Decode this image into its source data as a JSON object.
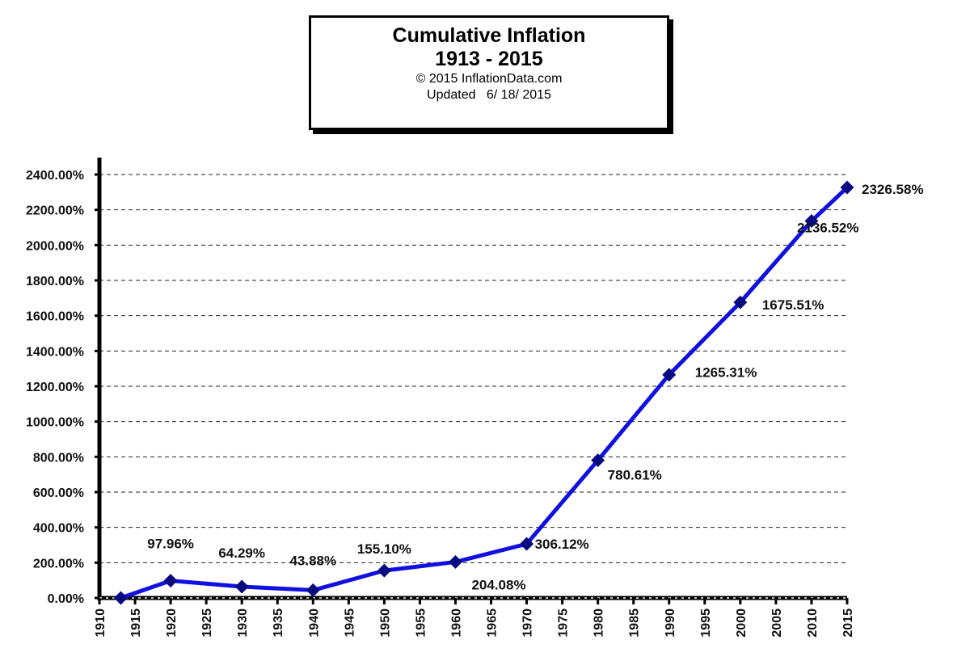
{
  "chart_data": {
    "type": "line",
    "title": "Cumulative Inflation",
    "subtitle": "1913 - 2015",
    "copyright": "© 2015 InflationData.com",
    "updated": "Updated   6/ 18/ 2015",
    "xlabel": "",
    "ylabel": "",
    "xlim": [
      1910,
      2015
    ],
    "ylim": [
      0,
      2400
    ],
    "grid": true,
    "x_ticks": [
      "1910",
      "1915",
      "1920",
      "1925",
      "1930",
      "1935",
      "1940",
      "1945",
      "1950",
      "1955",
      "1960",
      "1965",
      "1970",
      "1975",
      "1980",
      "1985",
      "1990",
      "1995",
      "2000",
      "2005",
      "2010",
      "2015"
    ],
    "y_ticks": [
      "0.00%",
      "200.00%",
      "400.00%",
      "600.00%",
      "800.00%",
      "1000.00%",
      "1200.00%",
      "1400.00%",
      "1600.00%",
      "1800.00%",
      "2000.00%",
      "2200.00%",
      "2400.00%"
    ],
    "series": [
      {
        "name": "Cumulative Inflation",
        "color": "#1010e0",
        "marker_color": "#0a0a80",
        "x": [
          1913,
          1920,
          1930,
          1940,
          1950,
          1960,
          1970,
          1980,
          1990,
          2000,
          2010,
          2015
        ],
        "y": [
          0,
          97.96,
          64.29,
          43.88,
          155.1,
          204.08,
          306.12,
          780.61,
          1265.31,
          1675.51,
          2136.52,
          2326.58
        ],
        "labels": [
          "",
          "97.96%",
          "64.29%",
          "43.88%",
          "155.10%",
          "204.08%",
          "306.12%",
          "780.61%",
          "1265.31%",
          "1675.51%",
          "2136.52%",
          "2326.58%"
        ]
      }
    ]
  }
}
